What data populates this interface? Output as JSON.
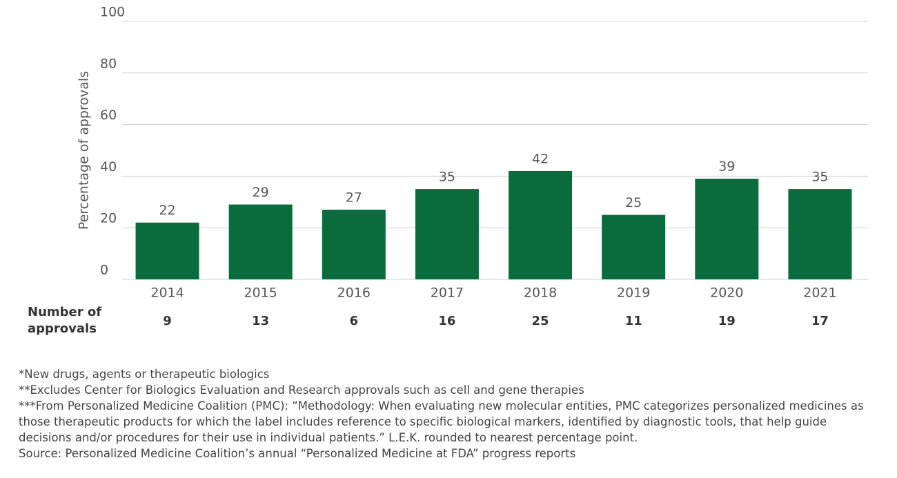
{
  "chart_data": {
    "type": "bar",
    "y_label": "Percentage of approvals",
    "categories": [
      "2014",
      "2015",
      "2016",
      "2017",
      "2018",
      "2019",
      "2020",
      "2021"
    ],
    "values": [
      22,
      29,
      27,
      35,
      42,
      25,
      39,
      35
    ],
    "color": "#0a6b3d",
    "ylim": [
      0,
      100
    ],
    "yticks": [
      0,
      20,
      40,
      60,
      80,
      100
    ],
    "grid": true,
    "approvals_label": "Number of approvals",
    "approvals": [
      9,
      13,
      6,
      16,
      25,
      11,
      19,
      17
    ]
  },
  "footnotes": [
    "*New drugs, agents or therapeutic biologics",
    "**Excludes Center for Biologics Evaluation and Research approvals such as cell and gene therapies",
    "***From Personalized Medicine Coalition (PMC): “Methodology: When evaluating new molecular entities, PMC categorizes personalized medicines as those therapeutic products for which the label includes reference to specific biological markers, identified by diagnostic tools, that help guide decisions and/or procedures for their use in individual patients.” L.E.K. rounded to nearest percentage point.",
    "Source: Personalized Medicine Coalition’s annual “Personalized Medicine at FDA” progress reports"
  ]
}
